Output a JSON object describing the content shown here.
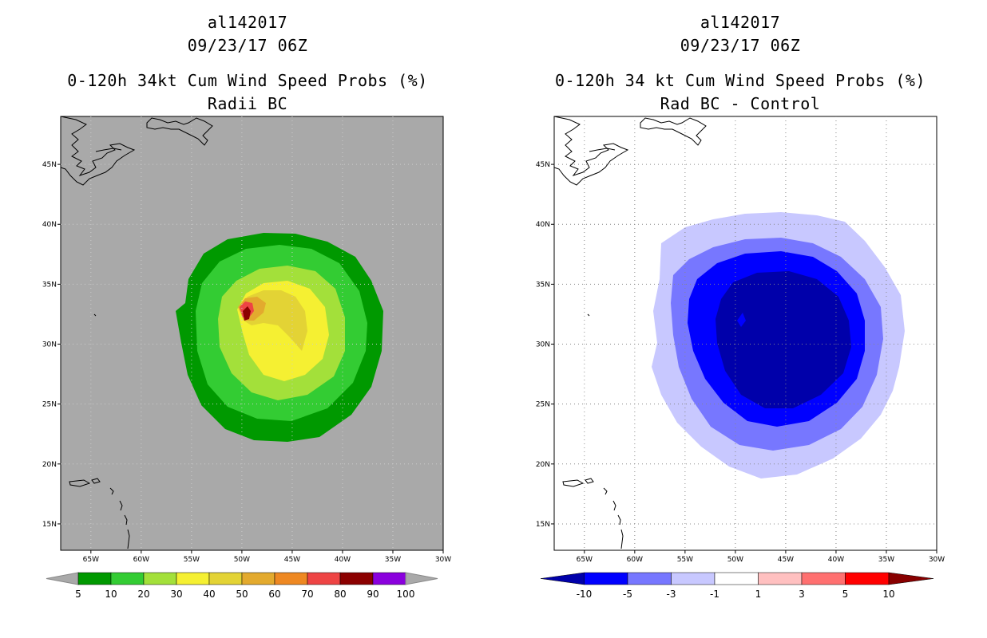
{
  "left": {
    "storm_id": "al142017",
    "datetime": "09/23/17 06Z",
    "title": "0-120h 34kt Cum Wind Speed Probs (%)",
    "subtitle": "Radii BC",
    "colors": {
      "background": "#a9a9a9",
      "land": "#a9a9a9"
    },
    "contour_levels": [
      {
        "label": "5",
        "color": "#009900"
      },
      {
        "label": "10",
        "color": "#33cc33"
      },
      {
        "label": "20",
        "color": "#a3e03a"
      },
      {
        "label": "30",
        "color": "#f5f032"
      },
      {
        "label": "40",
        "color": "#e3d335"
      },
      {
        "label": "50",
        "color": "#e3aa2e"
      },
      {
        "label": "60",
        "color": "#ee8822"
      },
      {
        "label": "70",
        "color": "#ee4444"
      },
      {
        "label": "80",
        "color": "#8b0000"
      },
      {
        "label": "90",
        "color": "#8a00dd"
      },
      {
        "label": "100",
        "color": ""
      }
    ]
  },
  "right": {
    "storm_id": "al142017",
    "datetime": "09/23/17 06Z",
    "title": "0-120h 34 kt Cum Wind Speed Probs (%)",
    "subtitle": "Rad BC - Control",
    "colors": {
      "background": "#ffffff"
    },
    "contour_levels": [
      {
        "label": "-10",
        "color": "#0000aa"
      },
      {
        "label": "-5",
        "color": "#0000ff"
      },
      {
        "label": "-3",
        "color": "#7777ff"
      },
      {
        "label": "-1",
        "color": "#c8c8ff"
      },
      {
        "label": "1",
        "color": "#ffffff"
      },
      {
        "label": "3",
        "color": "#ffc0c0"
      },
      {
        "label": "5",
        "color": "#ff7070"
      },
      {
        "label": "10",
        "color": "#ff0000"
      }
    ],
    "end_colors": {
      "low": "#000088",
      "high": "#880000"
    }
  },
  "axes": {
    "lon_labels": [
      "65W",
      "60W",
      "55W",
      "50W",
      "45W",
      "40W",
      "35W",
      "30W"
    ],
    "lat_labels": [
      "45N",
      "40N",
      "35N",
      "30N",
      "25N",
      "20N",
      "15N"
    ],
    "lon_values": [
      -65,
      -60,
      -55,
      -50,
      -45,
      -40,
      -35,
      -30
    ],
    "lat_values": [
      45,
      40,
      35,
      30,
      25,
      20,
      15
    ],
    "lon_range": [
      -68,
      -30
    ],
    "lat_range": [
      12.8,
      49
    ]
  }
}
